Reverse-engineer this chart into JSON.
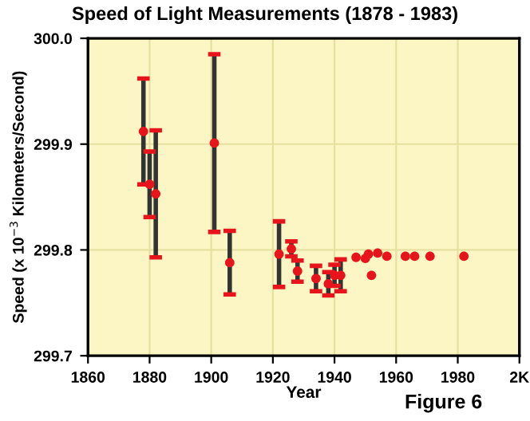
{
  "chart_data": {
    "type": "scatter",
    "title": "Speed of Light Measurements (1878 - 1983)",
    "xlabel": "Year",
    "ylabel": "Speed (x 10$^{−3}$ Kilometers/Second)",
    "annotations": [
      "Figure 6"
    ],
    "x": [
      1878,
      1880,
      1882,
      1901,
      1906,
      1922,
      1926,
      1928,
      1934,
      1938,
      1940,
      1942,
      1947,
      1950,
      1951,
      1952,
      1954,
      1957,
      1963,
      1966,
      1971,
      1982
    ],
    "series": [
      {
        "color": "#e8141b",
        "values": [
          299.912,
          299.862,
          299.853,
          299.901,
          299.788,
          299.796,
          299.801,
          299.78,
          299.773,
          299.768,
          299.776,
          299.776,
          299.793,
          299.792,
          299.796,
          299.776,
          299.797,
          299.794,
          299.794,
          299.794,
          299.794,
          299.794
        ],
        "errors": [
          0.05,
          0.031,
          0.06,
          0.084,
          0.03,
          0.031,
          0.007,
          0.01,
          0.012,
          0.011,
          0.01,
          0.015,
          null,
          null,
          null,
          null,
          null,
          null,
          null,
          null,
          null,
          null
        ]
      }
    ],
    "xlim": [
      1860,
      2000
    ],
    "xticks": [
      1860,
      1880,
      1900,
      1920,
      1940,
      1960,
      1980,
      {
        "value": 2000,
        "label": "2K"
      }
    ],
    "ylim": [
      299.7,
      300.0
    ],
    "yticks": [
      299.7,
      299.8,
      299.9,
      {
        "value": 300.0,
        "label": "300.0"
      }
    ],
    "grid": true,
    "marker": "circle"
  }
}
